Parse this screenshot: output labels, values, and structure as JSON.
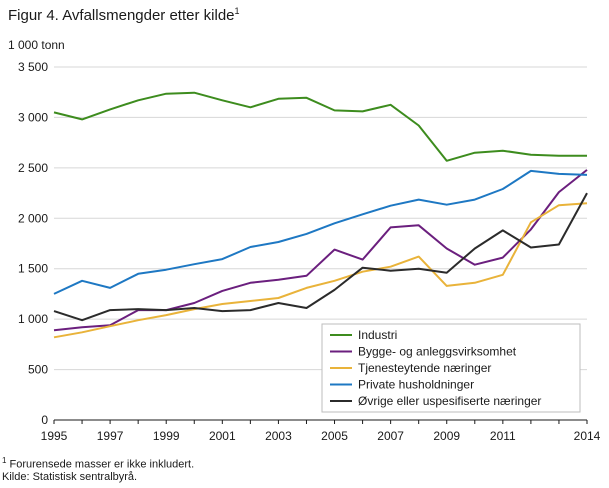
{
  "header": {
    "title": "Figur 4. Avfallsmengder etter kilde",
    "title_sup": "1",
    "unit": "1 000 tonn"
  },
  "footer": {
    "note_sup": "1",
    "note": " Forurensede masser er ikke inkludert.",
    "source": "Kilde: Statistisk sentralbyrå."
  },
  "chart_data": {
    "type": "line",
    "title": "Avfallsmengder etter kilde",
    "ylabel": "1 000 tonn",
    "xlim": [
      1995,
      2014
    ],
    "ylim": [
      0,
      3500
    ],
    "yticks": [
      0,
      500,
      1000,
      1500,
      2000,
      2500,
      3000,
      3500
    ],
    "ytick_labels": [
      "0",
      "500",
      "1 000",
      "1 500",
      "2 000",
      "2 500",
      "3 000",
      "3 500"
    ],
    "xticks": [
      1995,
      1997,
      1999,
      2001,
      2003,
      2005,
      2007,
      2009,
      2011,
      2014
    ],
    "xtick_labels": [
      "1995",
      "1997",
      "1999",
      "2001",
      "2003",
      "2005",
      "2007",
      "2009",
      "2011",
      "2014"
    ],
    "grid": "horizontal",
    "legend_position": "bottom-right",
    "x": [
      1995,
      1996,
      1997,
      1998,
      1999,
      2000,
      2001,
      2002,
      2003,
      2004,
      2005,
      2006,
      2007,
      2008,
      2009,
      2010,
      2011,
      2012,
      2013,
      2014
    ],
    "series": [
      {
        "name": "Industri",
        "color": "#3d8c1e",
        "values": [
          3050,
          2980,
          3080,
          3170,
          3235,
          3245,
          3170,
          3100,
          3185,
          3195,
          3070,
          3060,
          3125,
          2920,
          2570,
          2650,
          2670,
          2630,
          2620,
          2620
        ]
      },
      {
        "name": "Bygge- og anleggsvirksomhet",
        "color": "#6b1f7e",
        "values": [
          890,
          920,
          940,
          1090,
          1090,
          1160,
          1280,
          1360,
          1390,
          1430,
          1690,
          1590,
          1910,
          1930,
          1700,
          1540,
          1610,
          1890,
          2260,
          2480
        ]
      },
      {
        "name": "Tjenesteytende næringer",
        "color": "#e9b33a",
        "values": [
          820,
          870,
          930,
          990,
          1040,
          1100,
          1150,
          1180,
          1210,
          1310,
          1380,
          1470,
          1520,
          1620,
          1330,
          1360,
          1440,
          1960,
          2130,
          2150
        ]
      },
      {
        "name": "Private husholdninger",
        "color": "#1e78c3",
        "values": [
          1250,
          1380,
          1310,
          1450,
          1490,
          1545,
          1595,
          1715,
          1765,
          1845,
          1950,
          2040,
          2125,
          2185,
          2135,
          2185,
          2290,
          2470,
          2440,
          2430
        ]
      },
      {
        "name": "Øvrige eller uspesifiserte næringer",
        "color": "#2b2b2b",
        "values": [
          1080,
          990,
          1090,
          1100,
          1090,
          1110,
          1080,
          1090,
          1160,
          1110,
          1290,
          1510,
          1480,
          1500,
          1460,
          1700,
          1880,
          1710,
          1740,
          2250
        ]
      }
    ]
  }
}
